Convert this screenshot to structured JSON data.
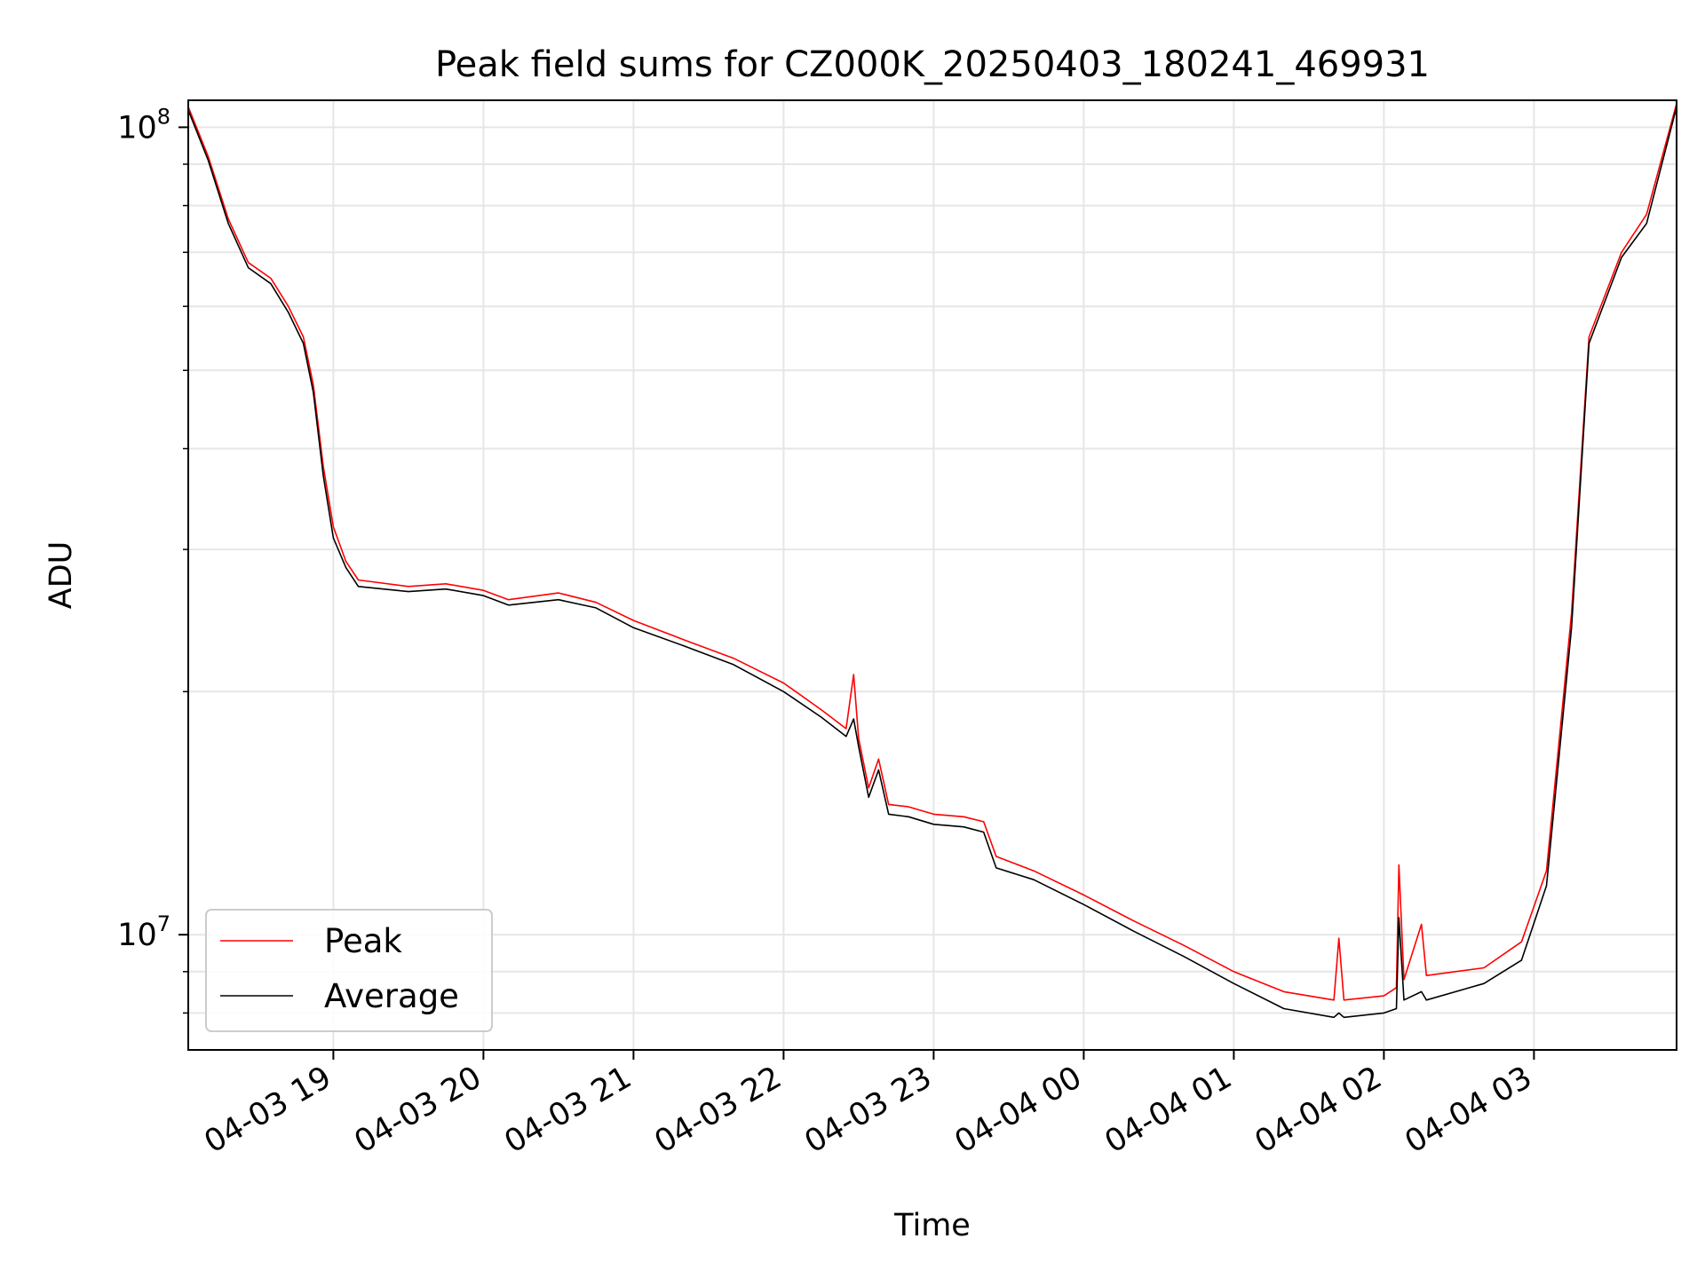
{
  "chart_data": {
    "type": "line",
    "title": "Peak field sums for CZ000K_20250403_180241_469931",
    "xlabel": "Time",
    "ylabel": "ADU",
    "yscale": "log",
    "ylim": [
      7200000,
      108000000
    ],
    "xlim": [
      "2025-04-03 18:02",
      "2025-04-04 03:57"
    ],
    "grid": true,
    "legend_location": "lower left",
    "x_tick_labels": [
      "04-03 19",
      "04-03 20",
      "04-03 21",
      "04-03 22",
      "04-03 23",
      "04-04 00",
      "04-04 01",
      "04-04 02",
      "04-04 03"
    ],
    "x_ticks": [
      "2025-04-03 19:00",
      "2025-04-03 20:00",
      "2025-04-03 21:00",
      "2025-04-03 22:00",
      "2025-04-03 23:00",
      "2025-04-04 00:00",
      "2025-04-04 01:00",
      "2025-04-04 02:00",
      "2025-04-04 03:00"
    ],
    "y_major_ticks": [
      {
        "value": 10000000,
        "base": "10",
        "exp": "7"
      },
      {
        "value": 100000000,
        "base": "10",
        "exp": "8"
      }
    ],
    "series": [
      {
        "name": "Peak",
        "color": "#ff0000",
        "points": [
          [
            "2025-04-03 18:02",
            106000000
          ],
          [
            "2025-04-03 18:10",
            92000000
          ],
          [
            "2025-04-03 18:18",
            77000000
          ],
          [
            "2025-04-03 18:26",
            68000000
          ],
          [
            "2025-04-03 18:35",
            65000000
          ],
          [
            "2025-04-03 18:42",
            60000000
          ],
          [
            "2025-04-03 18:48",
            55000000
          ],
          [
            "2025-04-03 18:52",
            48000000
          ],
          [
            "2025-04-03 18:56",
            38000000
          ],
          [
            "2025-04-03 19:00",
            32000000
          ],
          [
            "2025-04-03 19:05",
            29000000
          ],
          [
            "2025-04-03 19:10",
            27500000
          ],
          [
            "2025-04-03 19:30",
            27000000
          ],
          [
            "2025-04-03 19:45",
            27200000
          ],
          [
            "2025-04-03 20:00",
            26700000
          ],
          [
            "2025-04-03 20:10",
            26000000
          ],
          [
            "2025-04-03 20:30",
            26500000
          ],
          [
            "2025-04-03 20:45",
            25800000
          ],
          [
            "2025-04-03 21:00",
            24500000
          ],
          [
            "2025-04-03 21:20",
            23200000
          ],
          [
            "2025-04-03 21:40",
            22000000
          ],
          [
            "2025-04-03 22:00",
            20500000
          ],
          [
            "2025-04-03 22:15",
            19000000
          ],
          [
            "2025-04-03 22:25",
            18000000
          ],
          [
            "2025-04-03 22:28",
            21000000
          ],
          [
            "2025-04-03 22:30",
            17500000
          ],
          [
            "2025-04-03 22:34",
            15200000
          ],
          [
            "2025-04-03 22:38",
            16500000
          ],
          [
            "2025-04-03 22:42",
            14500000
          ],
          [
            "2025-04-03 22:50",
            14400000
          ],
          [
            "2025-04-03 23:00",
            14100000
          ],
          [
            "2025-04-03 23:12",
            14000000
          ],
          [
            "2025-04-03 23:20",
            13800000
          ],
          [
            "2025-04-03 23:25",
            12500000
          ],
          [
            "2025-04-03 23:40",
            12000000
          ],
          [
            "2025-04-04 00:00",
            11200000
          ],
          [
            "2025-04-04 00:20",
            10400000
          ],
          [
            "2025-04-04 00:40",
            9700000
          ],
          [
            "2025-04-04 01:00",
            9000000
          ],
          [
            "2025-04-04 01:20",
            8500000
          ],
          [
            "2025-04-04 01:40",
            8300000
          ],
          [
            "2025-04-04 01:42",
            9900000
          ],
          [
            "2025-04-04 01:44",
            8300000
          ],
          [
            "2025-04-04 02:00",
            8400000
          ],
          [
            "2025-04-04 02:05",
            8600000
          ],
          [
            "2025-04-04 02:06",
            12200000
          ],
          [
            "2025-04-04 02:08",
            8800000
          ],
          [
            "2025-04-04 02:15",
            10300000
          ],
          [
            "2025-04-04 02:17",
            8900000
          ],
          [
            "2025-04-04 02:40",
            9100000
          ],
          [
            "2025-04-04 02:55",
            9800000
          ],
          [
            "2025-04-04 03:05",
            12000000
          ],
          [
            "2025-04-04 03:15",
            25000000
          ],
          [
            "2025-04-04 03:22",
            55000000
          ],
          [
            "2025-04-04 03:35",
            70000000
          ],
          [
            "2025-04-04 03:45",
            78000000
          ],
          [
            "2025-04-04 03:57",
            107000000
          ]
        ]
      },
      {
        "name": "Average",
        "color": "#000000",
        "points": [
          [
            "2025-04-03 18:02",
            105000000
          ],
          [
            "2025-04-03 18:10",
            91000000
          ],
          [
            "2025-04-03 18:18",
            76000000
          ],
          [
            "2025-04-03 18:26",
            67000000
          ],
          [
            "2025-04-03 18:35",
            64000000
          ],
          [
            "2025-04-03 18:42",
            59000000
          ],
          [
            "2025-04-03 18:48",
            54000000
          ],
          [
            "2025-04-03 18:52",
            47000000
          ],
          [
            "2025-04-03 18:56",
            37000000
          ],
          [
            "2025-04-03 19:00",
            31000000
          ],
          [
            "2025-04-03 19:05",
            28500000
          ],
          [
            "2025-04-03 19:10",
            27000000
          ],
          [
            "2025-04-03 19:30",
            26600000
          ],
          [
            "2025-04-03 19:45",
            26800000
          ],
          [
            "2025-04-03 20:00",
            26300000
          ],
          [
            "2025-04-03 20:10",
            25600000
          ],
          [
            "2025-04-03 20:30",
            26000000
          ],
          [
            "2025-04-03 20:45",
            25400000
          ],
          [
            "2025-04-03 21:00",
            24000000
          ],
          [
            "2025-04-03 21:20",
            22800000
          ],
          [
            "2025-04-03 21:40",
            21600000
          ],
          [
            "2025-04-03 22:00",
            20000000
          ],
          [
            "2025-04-03 22:15",
            18600000
          ],
          [
            "2025-04-03 22:25",
            17600000
          ],
          [
            "2025-04-03 22:28",
            18500000
          ],
          [
            "2025-04-03 22:30",
            17100000
          ],
          [
            "2025-04-03 22:34",
            14800000
          ],
          [
            "2025-04-03 22:38",
            16000000
          ],
          [
            "2025-04-03 22:42",
            14100000
          ],
          [
            "2025-04-03 22:50",
            14000000
          ],
          [
            "2025-04-03 23:00",
            13700000
          ],
          [
            "2025-04-03 23:12",
            13600000
          ],
          [
            "2025-04-03 23:20",
            13400000
          ],
          [
            "2025-04-03 23:25",
            12100000
          ],
          [
            "2025-04-03 23:40",
            11700000
          ],
          [
            "2025-04-04 00:00",
            10900000
          ],
          [
            "2025-04-04 00:20",
            10100000
          ],
          [
            "2025-04-04 00:40",
            9400000
          ],
          [
            "2025-04-04 01:00",
            8700000
          ],
          [
            "2025-04-04 01:20",
            8100000
          ],
          [
            "2025-04-04 01:40",
            7900000
          ],
          [
            "2025-04-04 01:42",
            8000000
          ],
          [
            "2025-04-04 01:44",
            7900000
          ],
          [
            "2025-04-04 02:00",
            8000000
          ],
          [
            "2025-04-04 02:05",
            8100000
          ],
          [
            "2025-04-04 02:06",
            10500000
          ],
          [
            "2025-04-04 02:08",
            8300000
          ],
          [
            "2025-04-04 02:15",
            8500000
          ],
          [
            "2025-04-04 02:17",
            8300000
          ],
          [
            "2025-04-04 02:40",
            8700000
          ],
          [
            "2025-04-04 02:55",
            9300000
          ],
          [
            "2025-04-04 03:05",
            11500000
          ],
          [
            "2025-04-04 03:15",
            24000000
          ],
          [
            "2025-04-04 03:22",
            54000000
          ],
          [
            "2025-04-04 03:35",
            69000000
          ],
          [
            "2025-04-04 03:45",
            76000000
          ],
          [
            "2025-04-04 03:57",
            106000000
          ]
        ]
      }
    ]
  }
}
